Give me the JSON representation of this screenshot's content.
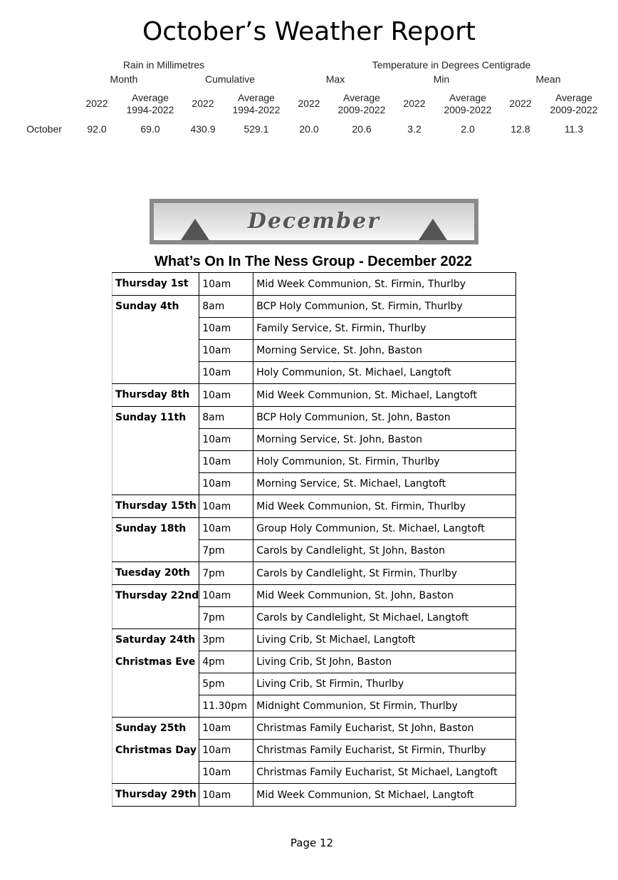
{
  "weather": {
    "title": "October’s Weather Report",
    "rain_header": "Rain in Millimetres",
    "temp_header": "Temperature in Degrees Centigrade",
    "groups": [
      "Month",
      "Cumulative",
      "Max",
      "Min",
      "Mean"
    ],
    "columns": [
      "2022",
      "Average 1994-2022",
      "2022",
      "Average 1994-2022",
      "2022",
      "Average 2009-2022",
      "2022",
      "Average 2009-2022",
      "2022",
      "Average 2009-2022"
    ],
    "row_label": "October",
    "values": [
      "92.0",
      "69.0",
      "430.9",
      "529.1",
      "20.0",
      "20.6",
      "3.2",
      "2.0",
      "12.8",
      "11.3"
    ]
  },
  "banner": {
    "text": "December"
  },
  "whats_on": {
    "heading": "What’s On In The Ness Group - December 2022",
    "groups": [
      {
        "day": [
          "Thursday 1st"
        ],
        "events": [
          [
            "10am",
            "Mid Week Communion, St. Firmin, Thurlby"
          ]
        ]
      },
      {
        "day": [
          "Sunday 4th"
        ],
        "events": [
          [
            "8am",
            "BCP Holy Communion, St. Firmin, Thurlby"
          ],
          [
            "10am",
            "Family Service, St. Firmin, Thurlby"
          ],
          [
            "10am",
            "Morning Service, St. John, Baston"
          ],
          [
            "10am",
            "Holy Communion, St. Michael, Langtoft"
          ]
        ]
      },
      {
        "day": [
          "Thursday 8th"
        ],
        "events": [
          [
            "10am",
            "Mid Week Communion, St. Michael, Langtoft"
          ]
        ]
      },
      {
        "day": [
          "Sunday 11th"
        ],
        "events": [
          [
            "8am",
            "BCP Holy Communion, St. John, Baston"
          ],
          [
            "10am",
            "Morning Service, St. John, Baston"
          ],
          [
            "10am",
            "Holy Communion, St. Firmin, Thurlby"
          ],
          [
            "10am",
            "Morning Service, St. Michael, Langtoft"
          ]
        ]
      },
      {
        "day": [
          "Thursday 15th"
        ],
        "events": [
          [
            "10am",
            "Mid Week Communion, St. Firmin, Thurlby"
          ]
        ]
      },
      {
        "day": [
          "Sunday 18th"
        ],
        "events": [
          [
            "10am",
            "Group Holy Communion, St. Michael, Langtoft"
          ],
          [
            "7pm",
            "Carols by Candlelight, St John, Baston"
          ]
        ]
      },
      {
        "day": [
          "Tuesday 20th"
        ],
        "events": [
          [
            "7pm",
            "Carols by Candlelight, St Firmin, Thurlby"
          ]
        ]
      },
      {
        "day": [
          "Thursday 22nd"
        ],
        "events": [
          [
            "10am",
            "Mid Week Communion, St. John, Baston"
          ],
          [
            "7pm",
            "Carols by Candlelight, St Michael, Langtoft"
          ]
        ]
      },
      {
        "day": [
          "Saturday 24th",
          "Christmas Eve"
        ],
        "events": [
          [
            "3pm",
            "Living Crib, St Michael, Langtoft"
          ],
          [
            "4pm",
            "Living Crib, St John, Baston"
          ],
          [
            "5pm",
            "Living Crib, St Firmin, Thurlby"
          ],
          [
            "11.30pm",
            "Midnight Communion, St Firmin, Thurlby"
          ]
        ]
      },
      {
        "day": [
          "Sunday 25th",
          "Christmas Day"
        ],
        "events": [
          [
            "10am",
            "Christmas Family Eucharist, St John, Baston"
          ],
          [
            "10am",
            "Christmas Family Eucharist, St Firmin, Thurlby"
          ],
          [
            "10am",
            "Christmas Family Eucharist, St Michael, Langtoft"
          ]
        ]
      },
      {
        "day": [
          "Thursday 29th"
        ],
        "events": [
          [
            "10am",
            "Mid Week Communion, St Michael, Langtoft"
          ]
        ]
      }
    ]
  },
  "footer": {
    "page": "Page 12"
  }
}
